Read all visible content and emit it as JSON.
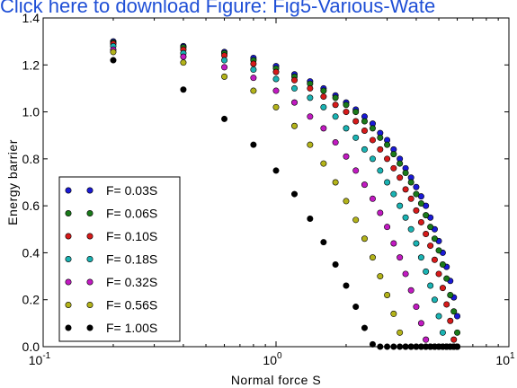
{
  "banner": {
    "text": "Click here to download Figure: Fig5-Various-Wate"
  },
  "chart_data": {
    "type": "scatter",
    "xscale": "log",
    "xlim": [
      0.1,
      10
    ],
    "ylim": [
      0,
      1.4
    ],
    "xlabel": "Normal force S",
    "ylabel": "Energy barrier",
    "xticks": [
      0.1,
      1,
      10
    ],
    "xtick_labels": [
      {
        "base": "10",
        "exp": "-1"
      },
      {
        "base": "10",
        "exp": "0"
      },
      {
        "base": "10",
        "exp": "1"
      }
    ],
    "yticks": [
      "0.0",
      "0.2",
      "0.4",
      "0.6",
      "0.8",
      "1.0",
      "1.2",
      "1.4"
    ],
    "legend_position": "lower-left",
    "x": [
      0.2,
      0.4,
      0.6,
      0.8,
      1.0,
      1.2,
      1.4,
      1.6,
      1.8,
      2.0,
      2.2,
      2.4,
      2.6,
      2.8,
      3.0,
      3.2,
      3.4,
      3.6,
      3.8,
      4.0,
      4.2,
      4.4,
      4.6,
      4.8,
      5.0,
      5.2,
      5.4,
      5.6,
      5.8,
      6.0
    ],
    "series": [
      {
        "name": "F= 0.03S",
        "color": "#1a1ad6",
        "values": [
          1.3,
          1.28,
          1.255,
          1.23,
          1.195,
          1.16,
          1.13,
          1.1,
          1.07,
          1.04,
          1.01,
          0.98,
          0.95,
          0.91,
          0.88,
          0.84,
          0.8,
          0.76,
          0.72,
          0.68,
          0.64,
          0.6,
          0.55,
          0.5,
          0.45,
          0.4,
          0.34,
          0.28,
          0.21,
          0.13
        ]
      },
      {
        "name": "F= 0.06S",
        "color": "#1a7a1a",
        "values": [
          1.295,
          1.275,
          1.25,
          1.22,
          1.185,
          1.15,
          1.12,
          1.09,
          1.06,
          1.03,
          1.0,
          0.96,
          0.93,
          0.89,
          0.86,
          0.82,
          0.78,
          0.74,
          0.7,
          0.65,
          0.61,
          0.56,
          0.51,
          0.46,
          0.41,
          0.35,
          0.29,
          0.22,
          0.15,
          0.06
        ]
      },
      {
        "name": "F= 0.10S",
        "color": "#d61a1a",
        "values": [
          1.29,
          1.265,
          1.24,
          1.205,
          1.17,
          1.135,
          1.1,
          1.065,
          1.03,
          1.0,
          0.96,
          0.92,
          0.88,
          0.84,
          0.8,
          0.76,
          0.72,
          0.67,
          0.63,
          0.58,
          0.53,
          0.48,
          0.43,
          0.37,
          0.31,
          0.25,
          0.18,
          0.11,
          0.03,
          0.0
        ]
      },
      {
        "name": "F= 0.18S",
        "color": "#1ab3b3",
        "values": [
          1.28,
          1.25,
          1.22,
          1.18,
          1.14,
          1.1,
          1.06,
          1.02,
          0.98,
          0.93,
          0.89,
          0.84,
          0.8,
          0.75,
          0.7,
          0.65,
          0.6,
          0.55,
          0.5,
          0.44,
          0.38,
          0.32,
          0.26,
          0.2,
          0.13,
          0.06,
          0.0,
          0.0,
          0.0,
          0.0
        ]
      },
      {
        "name": "F= 0.32S",
        "color": "#c21ac2",
        "values": [
          1.265,
          1.235,
          1.19,
          1.145,
          1.09,
          1.04,
          0.98,
          0.93,
          0.87,
          0.81,
          0.75,
          0.69,
          0.63,
          0.57,
          0.51,
          0.44,
          0.38,
          0.31,
          0.24,
          0.17,
          0.1,
          0.03,
          0.0,
          0.0,
          0.0,
          0.0,
          0.0,
          0.0,
          0.0,
          0.0
        ]
      },
      {
        "name": "F= 0.56S",
        "color": "#b3b31a",
        "values": [
          1.255,
          1.21,
          1.15,
          1.09,
          1.02,
          0.94,
          0.86,
          0.78,
          0.7,
          0.62,
          0.54,
          0.46,
          0.38,
          0.3,
          0.22,
          0.14,
          0.06,
          0.0,
          0.0,
          0.0,
          0.0,
          0.0,
          0.0,
          0.0,
          0.0,
          0.0,
          0.0,
          0.0,
          0.0,
          0.0
        ]
      },
      {
        "name": "F= 1.00S",
        "color": "#000000",
        "values": [
          1.22,
          1.095,
          0.97,
          0.86,
          0.75,
          0.65,
          0.545,
          0.445,
          0.35,
          0.26,
          0.17,
          0.08,
          0.01,
          0.0,
          0.0,
          0.0,
          0.0,
          0.0,
          0.0,
          0.0,
          0.0,
          0.0,
          0.0,
          0.0,
          0.0,
          0.0,
          0.0,
          0.0,
          0.0,
          0.0
        ]
      }
    ]
  }
}
